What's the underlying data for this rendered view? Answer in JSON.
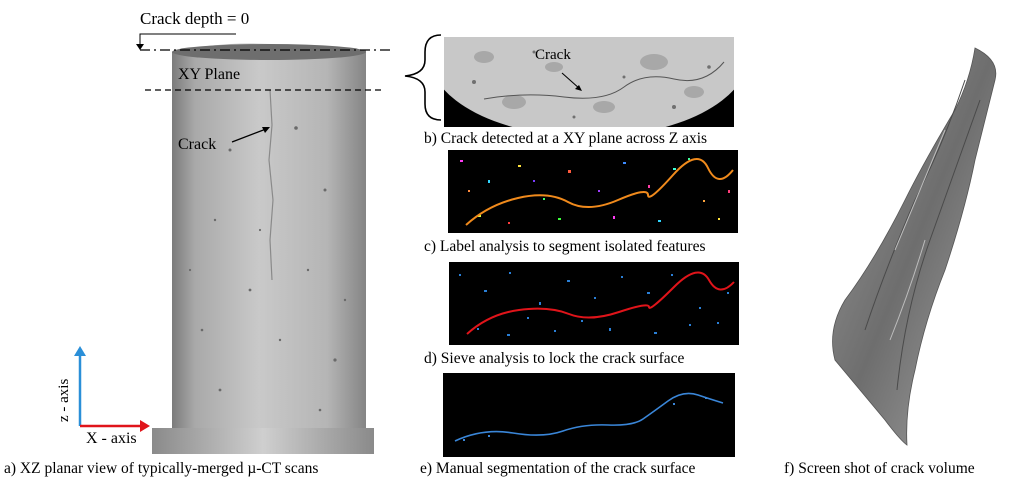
{
  "labels": {
    "crack_depth": "Crack depth = 0",
    "xy_plane": "XY Plane",
    "crack_a": "Crack",
    "crack_b": "Crack",
    "z_axis": "z - axis",
    "x_axis": "X - axis"
  },
  "captions": {
    "a": "a) XZ planar view of typically-merged µ-CT scans",
    "b": "b) Crack detected at a XY plane across Z axis",
    "c": "c) Label analysis to segment isolated features",
    "d": "d) Sieve analysis to lock the crack surface",
    "e": "e) Manual segmentation of the crack surface",
    "f": "f) Screen shot of crack volume"
  },
  "colors": {
    "label_crack": "#f08a1c",
    "sieve_crack": "#e0141a",
    "sieve_noise": "#2a7fd6",
    "manual_crack": "#3a86d8",
    "axis_z": "#2a8fd8",
    "axis_x": "#e0141a"
  }
}
